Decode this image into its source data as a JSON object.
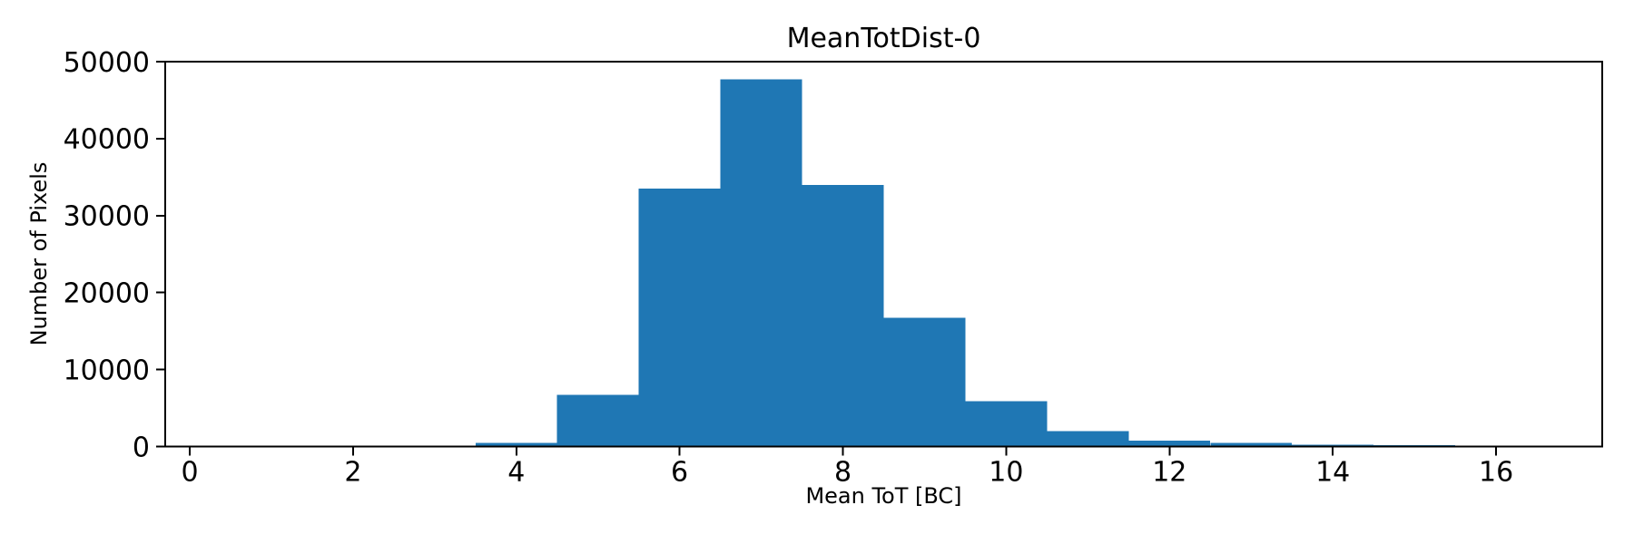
{
  "figure": {
    "background": "#ffffff",
    "text_color": "#000000"
  },
  "chart_data": {
    "type": "bar",
    "subtype": "histogram",
    "title": "MeanTotDist-0",
    "xlabel": "Mean ToT [BC]",
    "ylabel": "Number of Pixels",
    "bar_color": "#1f77b4",
    "bin_width": 1,
    "bin_centers": [
      1,
      2,
      3,
      4,
      5,
      6,
      7,
      8,
      9,
      10,
      11,
      12,
      13,
      14,
      15,
      16
    ],
    "bin_edges": [
      0.5,
      1.5,
      2.5,
      3.5,
      4.5,
      5.5,
      6.5,
      7.5,
      8.5,
      9.5,
      10.5,
      11.5,
      12.5,
      13.5,
      14.5,
      15.5,
      16.5
    ],
    "counts": [
      0,
      0,
      0,
      450,
      6700,
      33500,
      47700,
      34000,
      16700,
      5900,
      2000,
      750,
      450,
      250,
      200,
      0
    ],
    "xlim": [
      -0.3,
      17.3
    ],
    "ylim": [
      0,
      50000
    ],
    "x_ticks": [
      0,
      2,
      4,
      6,
      8,
      10,
      12,
      14,
      16
    ],
    "y_ticks": [
      0,
      10000,
      20000,
      30000,
      40000,
      50000
    ],
    "grid": false,
    "legend_position": "none"
  }
}
